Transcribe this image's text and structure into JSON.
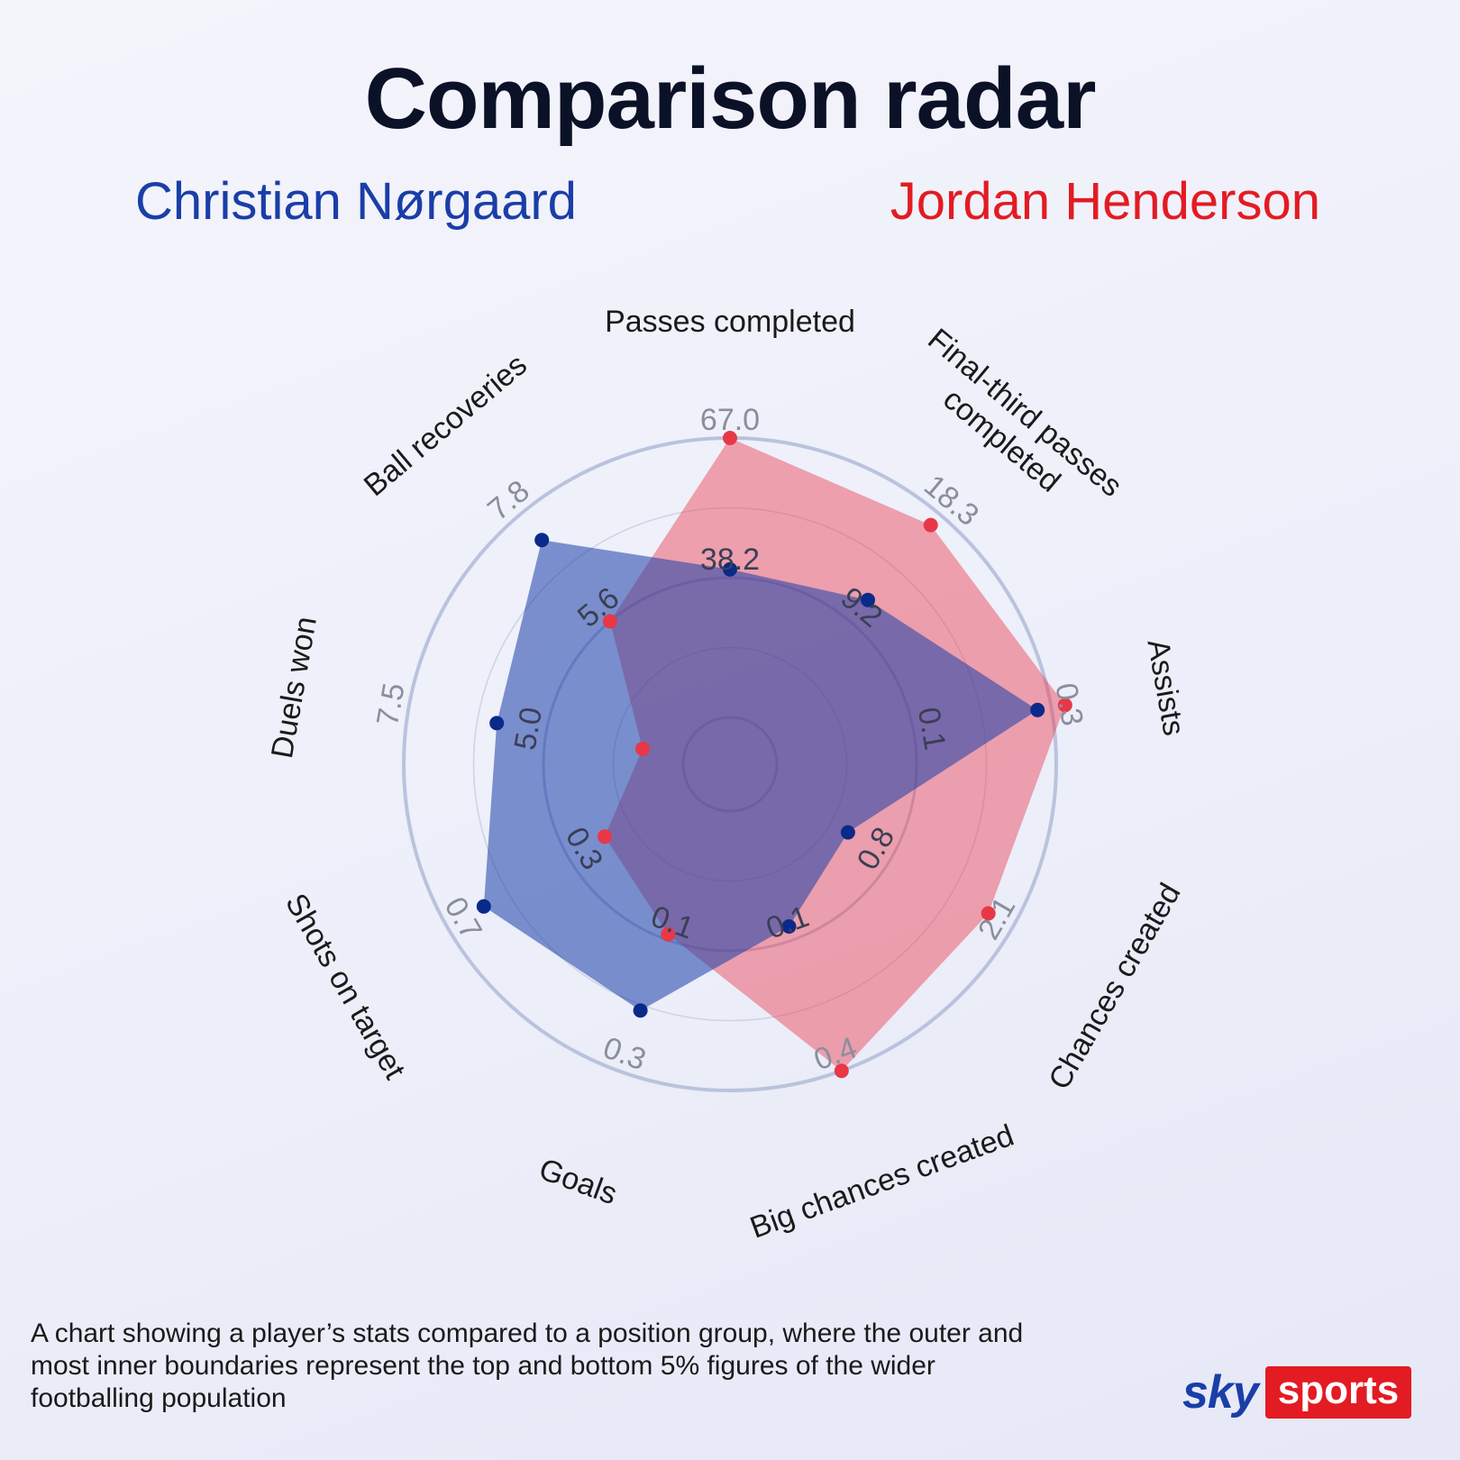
{
  "title": "Comparison radar",
  "players": {
    "a": {
      "name": "Christian Nørgaard",
      "color": "#1a3ea8"
    },
    "b": {
      "name": "Jordan Henderson",
      "color": "#e31b23"
    }
  },
  "chart_data": {
    "type": "radar",
    "title": "Comparison radar",
    "axes": [
      {
        "label": "Passes completed",
        "median": "38.2",
        "top": "67.0"
      },
      {
        "label": "Final-third passes completed",
        "median": "9.2",
        "top": "18.3"
      },
      {
        "label": "Assists",
        "median": "0.1",
        "top": "0.3"
      },
      {
        "label": "Chances created",
        "median": "0.8",
        "top": "2.1"
      },
      {
        "label": "Big chances created",
        "median": "0.1",
        "top": "0.4"
      },
      {
        "label": "Goals",
        "median": "0.1",
        "top": "0.3"
      },
      {
        "label": "Shots on target",
        "median": "0.3",
        "top": "0.7"
      },
      {
        "label": "Duels won",
        "median": "5.0",
        "top": "7.5"
      },
      {
        "label": "Ball recoveries",
        "median": "5.6",
        "top": "7.8"
      }
    ],
    "scale": {
      "inner": "bottom 5%",
      "middle": "median",
      "outer": "top 5%"
    },
    "series": [
      {
        "name": "Christian Nørgaard",
        "color": "#1a3ea8",
        "percentile": [
          0.53,
          0.6,
          0.95,
          0.32,
          0.45,
          0.77,
          0.85,
          0.68,
          0.88
        ]
      },
      {
        "name": "Jordan Henderson",
        "color": "#e31b23",
        "percentile": [
          1.0,
          0.95,
          1.05,
          0.9,
          1.0,
          0.48,
          0.35,
          0.15,
          0.5
        ]
      }
    ]
  },
  "footnote": "A chart showing a player’s stats compared to a position group,  where the outer and most inner boundaries represent the top  and bottom 5% figures of the wider footballing population",
  "brand": {
    "sky": "sky",
    "sports": "sports"
  }
}
